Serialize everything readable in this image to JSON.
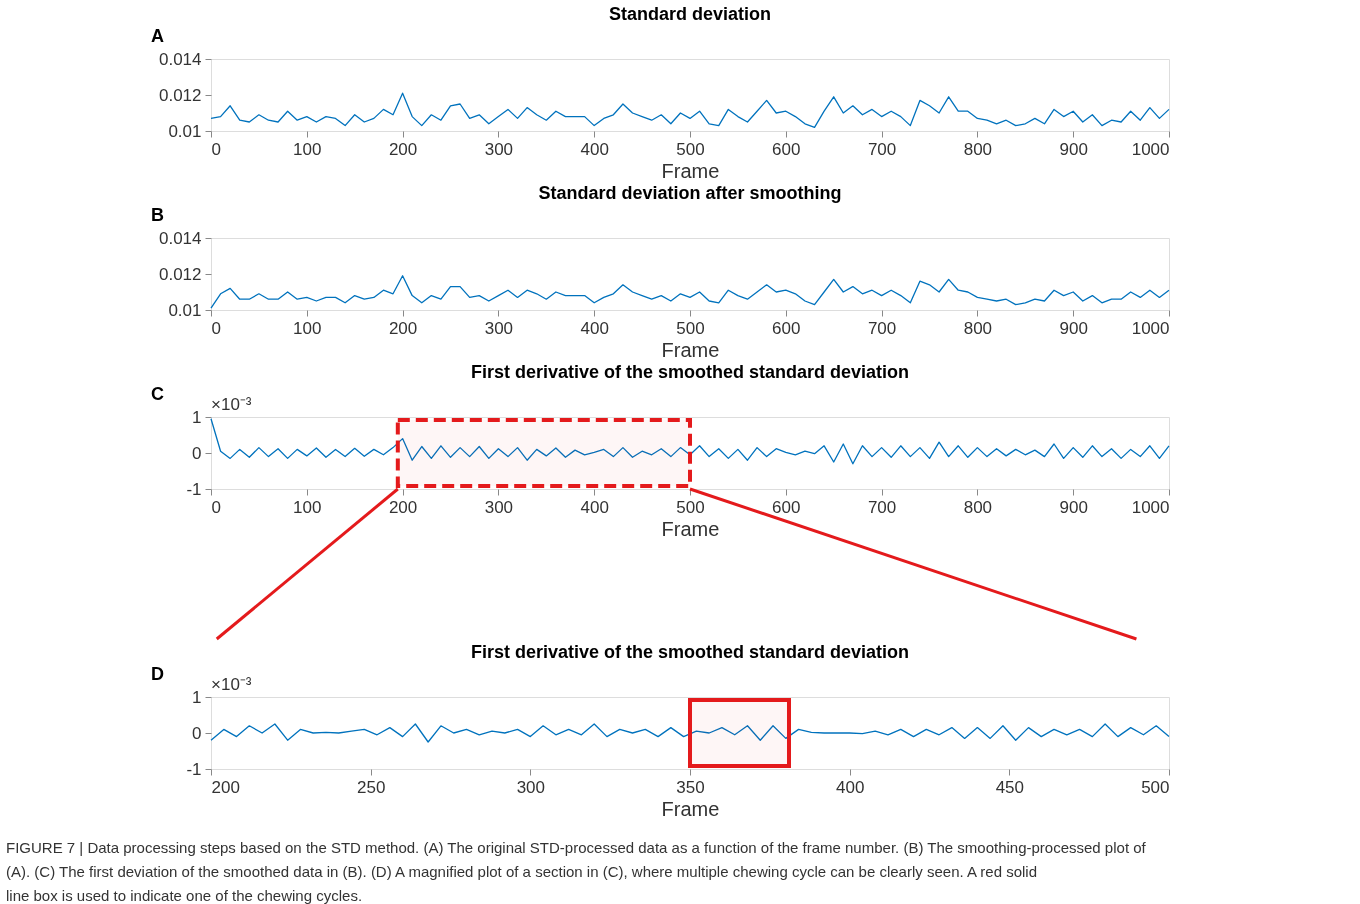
{
  "chart_data": [
    {
      "type": "line",
      "title": "Standard deviation",
      "xlabel": "Frame",
      "xlim": [
        0,
        1000
      ],
      "xticks": [
        0,
        100,
        200,
        300,
        400,
        500,
        600,
        700,
        800,
        900,
        1000
      ],
      "ylim": [
        0.01,
        0.014
      ],
      "yticks": [
        0.01,
        0.012,
        0.014
      ],
      "grid": false,
      "annotations": [
        "A"
      ],
      "x": [
        0,
        10,
        20,
        30,
        40,
        50,
        60,
        70,
        80,
        90,
        100,
        110,
        120,
        130,
        140,
        150,
        160,
        170,
        180,
        190,
        200,
        210,
        220,
        230,
        240,
        250,
        260,
        270,
        280,
        290,
        300,
        310,
        320,
        330,
        340,
        350,
        360,
        370,
        380,
        390,
        400,
        410,
        420,
        430,
        440,
        450,
        460,
        470,
        480,
        490,
        500,
        510,
        520,
        530,
        540,
        550,
        560,
        570,
        580,
        590,
        600,
        610,
        620,
        630,
        640,
        650,
        660,
        670,
        680,
        690,
        700,
        710,
        720,
        730,
        740,
        750,
        760,
        770,
        780,
        790,
        800,
        810,
        820,
        830,
        840,
        850,
        860,
        870,
        880,
        890,
        900,
        910,
        920,
        930,
        940,
        950,
        960,
        970,
        980,
        990,
        1000
      ],
      "series": [
        {
          "color": "#0072bd",
          "values": [
            0.0107,
            0.0108,
            0.0114,
            0.0106,
            0.0105,
            0.0109,
            0.0106,
            0.0105,
            0.0111,
            0.0106,
            0.0108,
            0.0105,
            0.0108,
            0.0107,
            0.0103,
            0.0109,
            0.0105,
            0.0107,
            0.0112,
            0.0109,
            0.0121,
            0.0108,
            0.0103,
            0.0109,
            0.0106,
            0.0114,
            0.0115,
            0.0107,
            0.0109,
            0.0104,
            0.0108,
            0.0112,
            0.0107,
            0.0113,
            0.0109,
            0.0106,
            0.0111,
            0.0108,
            0.0108,
            0.0108,
            0.0103,
            0.0107,
            0.0109,
            0.0115,
            0.011,
            0.0108,
            0.0106,
            0.0109,
            0.0104,
            0.011,
            0.0107,
            0.0111,
            0.0104,
            0.0103,
            0.0112,
            0.0108,
            0.0105,
            0.0111,
            0.0117,
            0.011,
            0.0111,
            0.0108,
            0.0104,
            0.0102,
            0.0111,
            0.0119,
            0.011,
            0.0114,
            0.0109,
            0.0112,
            0.0108,
            0.0111,
            0.0108,
            0.0103,
            0.0117,
            0.0114,
            0.011,
            0.0119,
            0.0111,
            0.0111,
            0.0107,
            0.0106,
            0.0104,
            0.0106,
            0.0103,
            0.0104,
            0.0107,
            0.0104,
            0.0112,
            0.0108,
            0.0111,
            0.0105,
            0.0109,
            0.0103,
            0.0106,
            0.0105,
            0.0111,
            0.0106,
            0.0113,
            0.0107,
            0.0112
          ]
        }
      ]
    },
    {
      "type": "line",
      "title": "Standard deviation after smoothing",
      "xlabel": "Frame",
      "xlim": [
        0,
        1000
      ],
      "xticks": [
        0,
        100,
        200,
        300,
        400,
        500,
        600,
        700,
        800,
        900,
        1000
      ],
      "ylim": [
        0.01,
        0.014
      ],
      "yticks": [
        0.01,
        0.012,
        0.014
      ],
      "grid": false,
      "annotations": [
        "B"
      ],
      "x": [
        0,
        10,
        20,
        30,
        40,
        50,
        60,
        70,
        80,
        90,
        100,
        110,
        120,
        130,
        140,
        150,
        160,
        170,
        180,
        190,
        200,
        210,
        220,
        230,
        240,
        250,
        260,
        270,
        280,
        290,
        300,
        310,
        320,
        330,
        340,
        350,
        360,
        370,
        380,
        390,
        400,
        410,
        420,
        430,
        440,
        450,
        460,
        470,
        480,
        490,
        500,
        510,
        520,
        530,
        540,
        550,
        560,
        570,
        580,
        590,
        600,
        610,
        620,
        630,
        640,
        650,
        660,
        670,
        680,
        690,
        700,
        710,
        720,
        730,
        740,
        750,
        760,
        770,
        780,
        790,
        800,
        810,
        820,
        830,
        840,
        850,
        860,
        870,
        880,
        890,
        900,
        910,
        920,
        930,
        940,
        950,
        960,
        970,
        980,
        990,
        1000
      ],
      "series": [
        {
          "color": "#0072bd",
          "values": [
            0.0101,
            0.0109,
            0.0112,
            0.0106,
            0.0106,
            0.0109,
            0.0106,
            0.0106,
            0.011,
            0.0106,
            0.0107,
            0.0105,
            0.0107,
            0.0107,
            0.0104,
            0.0108,
            0.0106,
            0.0107,
            0.0111,
            0.0109,
            0.0119,
            0.0108,
            0.0104,
            0.0108,
            0.0106,
            0.0113,
            0.0113,
            0.0107,
            0.0108,
            0.0105,
            0.0108,
            0.0111,
            0.0107,
            0.0111,
            0.0109,
            0.0106,
            0.011,
            0.0108,
            0.0108,
            0.0108,
            0.0104,
            0.0107,
            0.0109,
            0.0114,
            0.011,
            0.0108,
            0.0106,
            0.0108,
            0.0105,
            0.0109,
            0.0107,
            0.011,
            0.0105,
            0.0104,
            0.0111,
            0.0108,
            0.0106,
            0.011,
            0.0114,
            0.011,
            0.0111,
            0.0109,
            0.0105,
            0.0103,
            0.011,
            0.0117,
            0.011,
            0.0113,
            0.0109,
            0.0111,
            0.0108,
            0.0111,
            0.0108,
            0.0104,
            0.0116,
            0.0114,
            0.011,
            0.0117,
            0.0111,
            0.011,
            0.0107,
            0.0106,
            0.0105,
            0.0106,
            0.0103,
            0.0104,
            0.0106,
            0.0105,
            0.0111,
            0.0108,
            0.011,
            0.0105,
            0.0108,
            0.0104,
            0.0106,
            0.0106,
            0.011,
            0.0107,
            0.0111,
            0.0107,
            0.0111
          ]
        }
      ]
    },
    {
      "type": "line",
      "title": "First derivative of the smoothed standard deviation",
      "xlabel": "Frame",
      "xlim": [
        0,
        1000
      ],
      "xticks": [
        0,
        100,
        200,
        300,
        400,
        500,
        600,
        700,
        800,
        900,
        1000
      ],
      "ylim": [
        -1,
        1
      ],
      "yticks": [
        -1,
        0,
        1
      ],
      "grid": false,
      "annotations": [
        "C",
        "×10⁻³"
      ],
      "bands": [
        {
          "axis": "x",
          "from": 195,
          "to": 500,
          "color": "#e41a1c"
        }
      ],
      "x": [
        0,
        10,
        20,
        30,
        40,
        50,
        60,
        70,
        80,
        90,
        100,
        110,
        120,
        130,
        140,
        150,
        160,
        170,
        180,
        190,
        200,
        210,
        220,
        230,
        240,
        250,
        260,
        270,
        280,
        290,
        300,
        310,
        320,
        330,
        340,
        350,
        360,
        370,
        380,
        390,
        400,
        410,
        420,
        430,
        440,
        450,
        460,
        470,
        480,
        490,
        500,
        510,
        520,
        530,
        540,
        550,
        560,
        570,
        580,
        590,
        600,
        610,
        620,
        630,
        640,
        650,
        660,
        670,
        680,
        690,
        700,
        710,
        720,
        730,
        740,
        750,
        760,
        770,
        780,
        790,
        800,
        810,
        820,
        830,
        840,
        850,
        860,
        870,
        880,
        890,
        900,
        910,
        920,
        930,
        940,
        950,
        960,
        970,
        980,
        990,
        1000
      ],
      "series": [
        {
          "color": "#0072bd",
          "values": [
            0.95,
            0.05,
            -0.15,
            0.1,
            -0.12,
            0.15,
            -0.1,
            0.12,
            -0.15,
            0.1,
            -0.08,
            0.14,
            -0.12,
            0.1,
            -0.1,
            0.13,
            -0.09,
            0.1,
            -0.05,
            0.15,
            0.4,
            -0.2,
            0.18,
            -0.15,
            0.2,
            -0.12,
            0.15,
            -0.1,
            0.18,
            -0.15,
            0.12,
            -0.1,
            0.15,
            -0.2,
            0.1,
            -0.08,
            0.14,
            -0.12,
            0.08,
            -0.05,
            0.02,
            0.1,
            -0.1,
            0.15,
            -0.12,
            0.05,
            -0.05,
            0.12,
            -0.1,
            0.15,
            -0.05,
            0.2,
            -0.1,
            0.12,
            -0.15,
            0.1,
            -0.2,
            0.15,
            -0.1,
            0.12,
            0.02,
            -0.05,
            0.05,
            -0.02,
            0.2,
            -0.25,
            0.25,
            -0.3,
            0.2,
            -0.1,
            0.15,
            -0.12,
            0.2,
            -0.1,
            0.15,
            -0.15,
            0.3,
            -0.1,
            0.2,
            -0.12,
            0.15,
            -0.1,
            0.12,
            -0.08,
            0.1,
            -0.05,
            0.08,
            -0.1,
            0.25,
            -0.15,
            0.15,
            -0.12,
            0.2,
            -0.1,
            0.12,
            -0.15,
            0.1,
            -0.1,
            0.2,
            -0.15,
            0.2
          ]
        }
      ]
    },
    {
      "type": "line",
      "title": "First derivative of the smoothed standard deviation",
      "xlabel": "Frame",
      "xlim": [
        200,
        500
      ],
      "xticks": [
        200,
        250,
        300,
        350,
        400,
        450,
        500
      ],
      "ylim": [
        -1,
        1
      ],
      "yticks": [
        -1,
        0,
        1
      ],
      "grid": false,
      "annotations": [
        "D",
        "×10⁻³",
        "FIGURE 7 | Data processing steps based on the STD method. (A) The original STD-processed data as a function of the frame number. (B) The smoothing-processed plot of (A). (C) The first deviation of the smoothed data in (B). (D) A magnified plot of a section in (C), where multiple chewing cycle can be clearly seen. A red solid line box is used to indicate one of the chewing cycles."
      ],
      "bands": [
        {
          "axis": "x",
          "from": 350,
          "to": 381,
          "color": "#e41a1c"
        }
      ],
      "x": [
        200,
        204,
        208,
        212,
        216,
        220,
        224,
        228,
        232,
        236,
        240,
        244,
        248,
        252,
        256,
        260,
        264,
        268,
        272,
        276,
        280,
        284,
        288,
        292,
        296,
        300,
        304,
        308,
        312,
        316,
        320,
        324,
        328,
        332,
        336,
        340,
        344,
        348,
        352,
        356,
        360,
        364,
        368,
        372,
        376,
        380,
        384,
        388,
        392,
        396,
        400,
        404,
        408,
        412,
        416,
        420,
        424,
        428,
        432,
        436,
        440,
        444,
        448,
        452,
        456,
        460,
        464,
        468,
        472,
        476,
        480,
        484,
        488,
        492,
        496,
        500
      ],
      "series": [
        {
          "color": "#0072bd",
          "values": [
            -0.2,
            0.1,
            -0.1,
            0.2,
            0.0,
            0.25,
            -0.2,
            0.1,
            0.0,
            0.02,
            0.0,
            0.05,
            0.1,
            -0.05,
            0.15,
            -0.1,
            0.25,
            -0.25,
            0.2,
            0.0,
            0.1,
            -0.05,
            0.05,
            0.0,
            0.1,
            -0.1,
            0.2,
            -0.05,
            0.1,
            -0.05,
            0.25,
            -0.1,
            0.1,
            0.0,
            0.1,
            -0.1,
            0.15,
            -0.1,
            0.05,
            0.0,
            0.15,
            -0.05,
            0.2,
            -0.2,
            0.2,
            -0.15,
            0.1,
            0.02,
            0.0,
            0.0,
            0.0,
            -0.02,
            0.05,
            -0.05,
            0.1,
            -0.1,
            0.1,
            -0.05,
            0.15,
            -0.15,
            0.15,
            -0.15,
            0.2,
            -0.2,
            0.15,
            -0.1,
            0.1,
            -0.05,
            0.1,
            -0.1,
            0.25,
            -0.1,
            0.15,
            -0.05,
            0.2,
            -0.1
          ]
        }
      ]
    }
  ]
}
